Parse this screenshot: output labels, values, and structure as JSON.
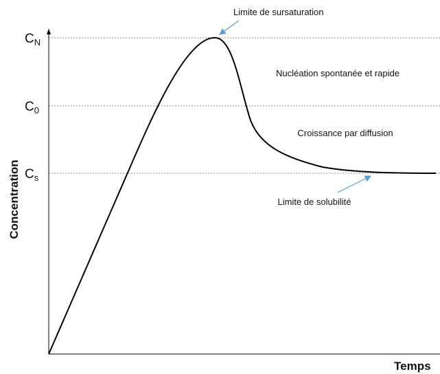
{
  "levels": [
    {
      "label": "C",
      "sub": "N"
    },
    {
      "label": "C",
      "sub": "0"
    },
    {
      "label": "C",
      "sub": "s"
    }
  ],
  "annotations": {
    "supersaturation": "Limite de sursaturation",
    "nucleation": "Nucléation spontanée et rapide",
    "growth": "Croissance par diffusion",
    "solubility": "Limite de solubilité"
  },
  "axes": {
    "y": "Concentration",
    "x": "Temps"
  }
}
